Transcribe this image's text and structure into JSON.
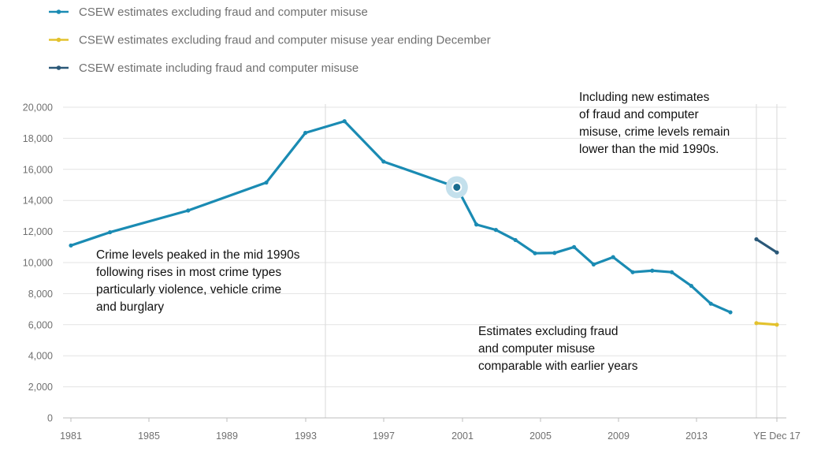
{
  "chart_data": {
    "type": "line",
    "title": "",
    "xlabel": "",
    "ylabel": "",
    "ylim": [
      0,
      20000
    ],
    "yticks": [
      0,
      2000,
      4000,
      6000,
      8000,
      10000,
      12000,
      14000,
      16000,
      18000,
      20000
    ],
    "ytick_labels": [
      "0",
      "2,000",
      "4,000",
      "6,000",
      "8,000",
      "10,000",
      "12,000",
      "14,000",
      "16,000",
      "18,000",
      "20,000"
    ],
    "xtick_labels": [
      "1981",
      "1985",
      "1989",
      "1993",
      "1997",
      "2001",
      "2005",
      "2009",
      "2013",
      "YE Dec 17"
    ],
    "grid": true,
    "legend_position": "top-left",
    "series": [
      {
        "name": "CSEW estimates excluding fraud and computer misuse",
        "color": "#1a8bb3",
        "x": [
          "1981",
          "1983",
          "1987",
          "1991",
          "1993",
          "1995",
          "1997",
          "2001/02",
          "2002/03",
          "2003/04",
          "2004/05",
          "2005/06",
          "2006/07",
          "2007/08",
          "2008/09",
          "2009/10",
          "2010/11",
          "2011/12",
          "2012/13",
          "2013/14",
          "2014/15",
          "2015/16"
        ],
        "values": [
          11100,
          11950,
          13350,
          15150,
          18350,
          19100,
          16500,
          14850,
          12450,
          12100,
          11450,
          10600,
          10620,
          11000,
          9880,
          10350,
          9380,
          9480,
          9380,
          8500,
          7350,
          6800
        ]
      },
      {
        "name": "CSEW estimates excluding fraud and computer misuse year ending December",
        "color": "#e3c22e",
        "x": [
          "YE Dec 16",
          "YE Dec 17"
        ],
        "values": [
          6100,
          6000
        ]
      },
      {
        "name": "CSEW estimate including fraud and computer misuse",
        "color": "#2a5878",
        "x": [
          "YE Dec 16",
          "YE Dec 17"
        ],
        "values": [
          11500,
          10650
        ]
      }
    ],
    "annotations": [
      [
        "Crime levels peaked in the mid 1990s",
        "following rises in most crime types",
        "particularly violence, vehicle crime",
        "and burglary"
      ],
      [
        "Including new estimates",
        "of fraud and computer",
        "misuse, crime levels remain",
        "lower than the mid 1990s."
      ],
      [
        "Estimates excluding fraud",
        "and computer misuse",
        "comparable with earlier years"
      ]
    ]
  }
}
